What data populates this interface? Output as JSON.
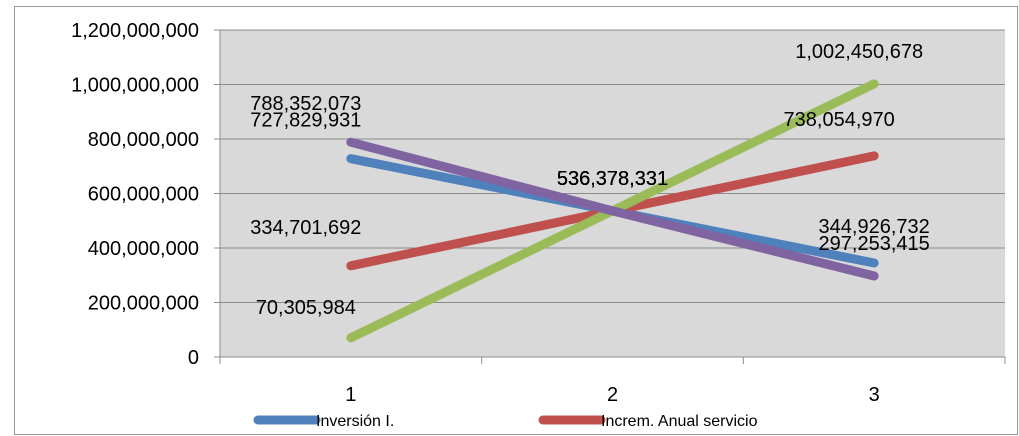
{
  "chart_data": {
    "type": "line",
    "categories": [
      "1",
      "2",
      "3"
    ],
    "ylim": [
      0,
      1200000000
    ],
    "yticks": [
      0,
      200000000,
      400000000,
      600000000,
      800000000,
      1000000000,
      1200000000
    ],
    "ytick_labels": [
      "0",
      "200,000,000",
      "400,000,000",
      "600,000,000",
      "800,000,000",
      "1,000,000,000",
      "1,200,000,000"
    ],
    "grid": true,
    "legend_placement": "bottom",
    "series": [
      {
        "name": "Inversión I.",
        "color": "#4f81bd",
        "values": [
          727829931,
          536378331,
          344926732
        ],
        "labels": [
          "727,829,931",
          "536,378,331",
          "344,926,732"
        ]
      },
      {
        "name": "Increm. Anual servicio",
        "color": "#c0504d",
        "values": [
          334701692,
          536378331,
          738054970
        ],
        "labels": [
          "334,701,692",
          "536,378,331",
          "738,054,970"
        ]
      },
      {
        "name": "",
        "color": "#9bbb59",
        "values": [
          70305984,
          536378331,
          1002450678
        ],
        "labels": [
          "70,305,984",
          "536,378,331",
          "1,002,450,678"
        ]
      },
      {
        "name": "",
        "color": "#8064a2",
        "values": [
          788352073,
          536378331,
          297253415
        ],
        "labels": [
          "788,352,073",
          "536,378,331",
          "297,253,415"
        ]
      }
    ]
  }
}
